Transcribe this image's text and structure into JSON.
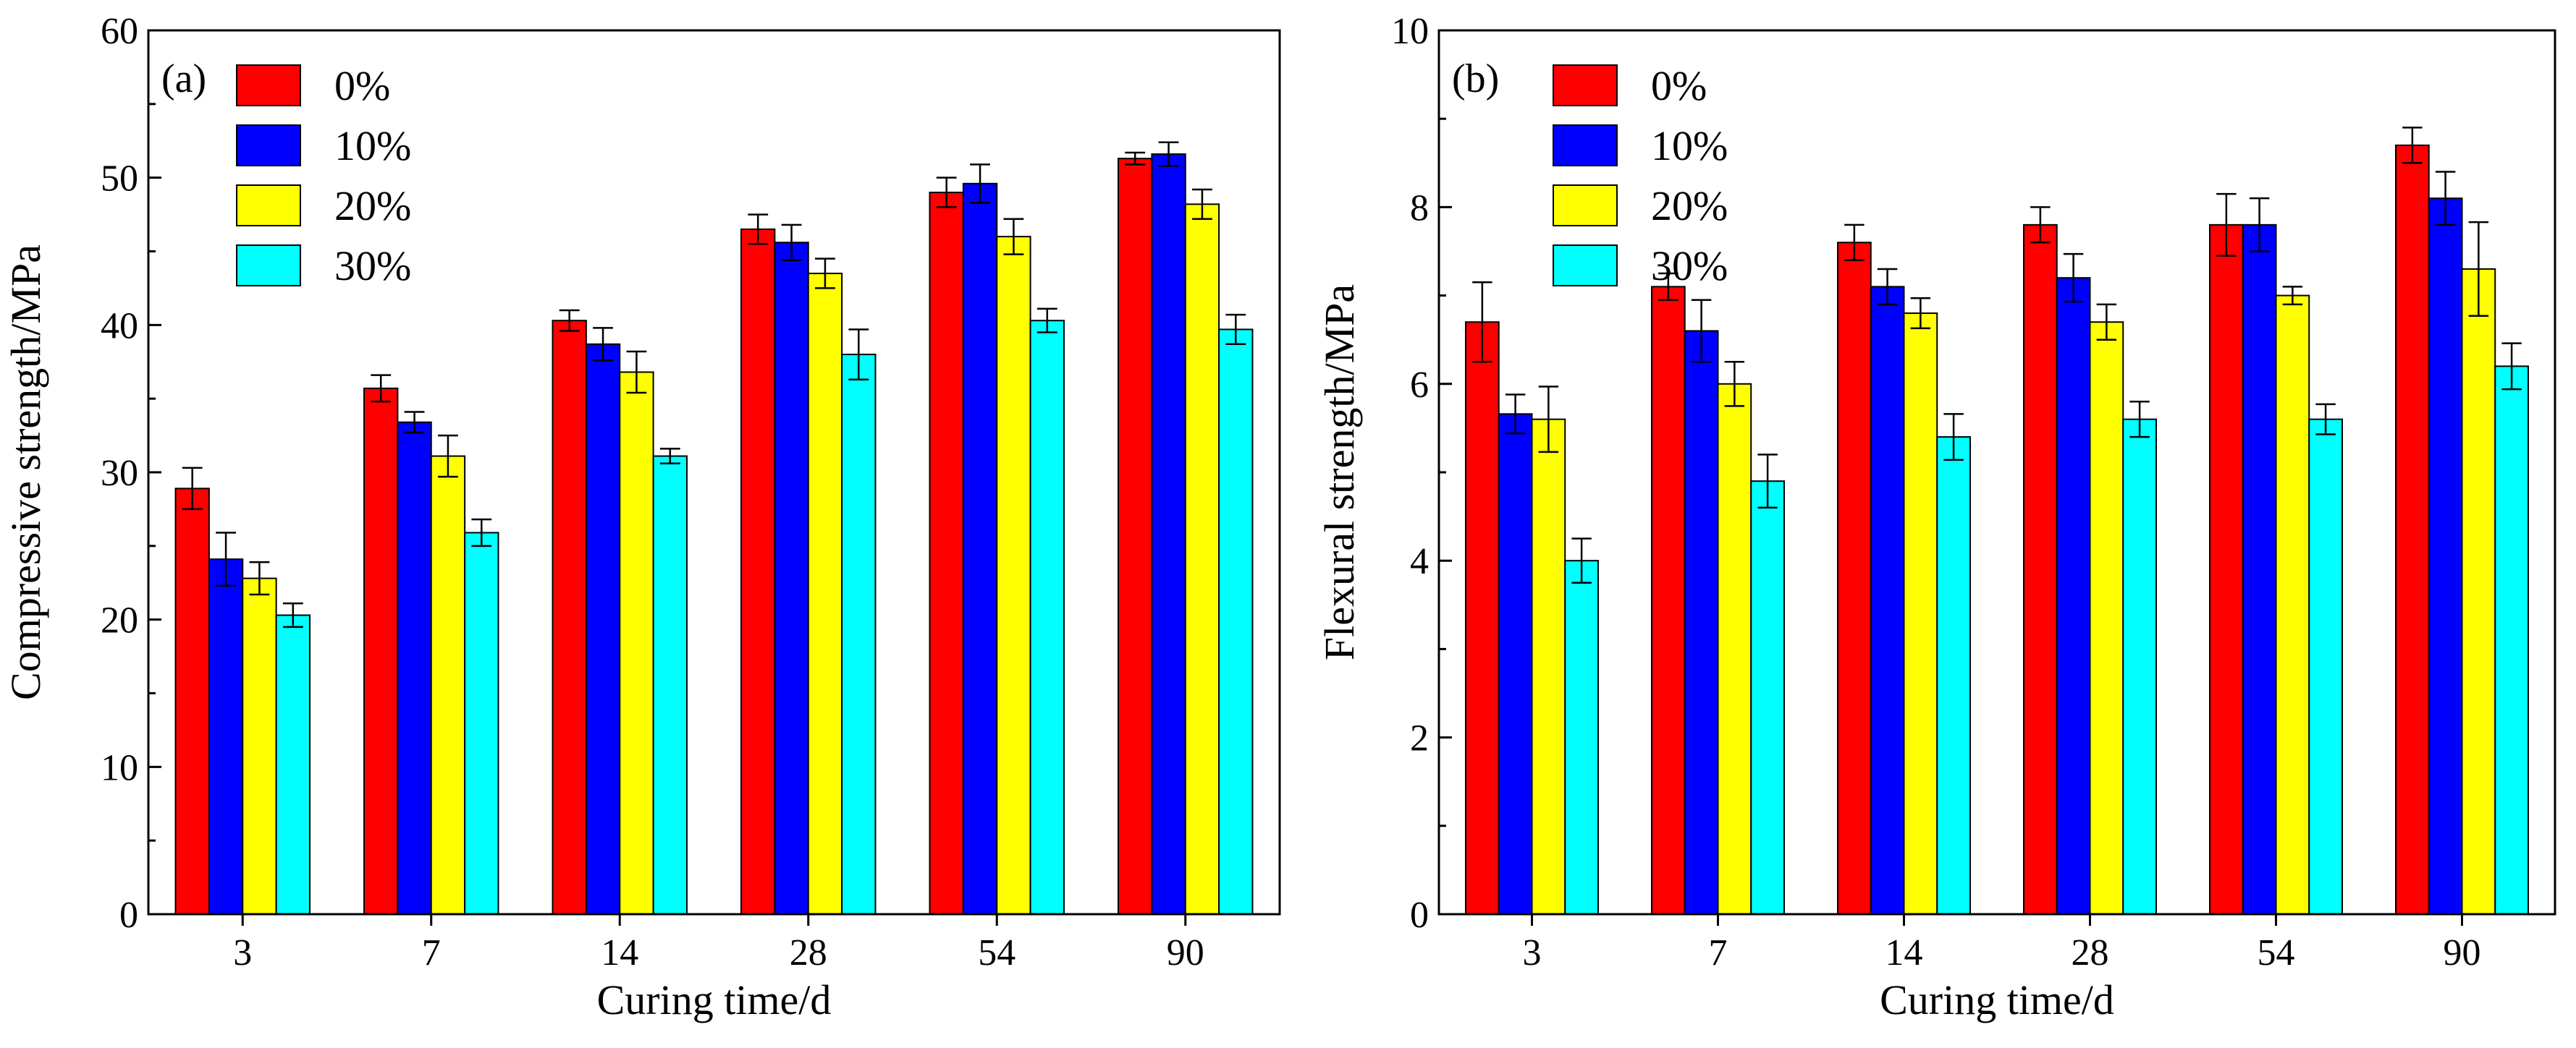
{
  "chart_data": [
    {
      "type": "bar",
      "panel_label": "(a)",
      "xlabel": "Curing time/d",
      "ylabel": "Compressive strength/MPa",
      "categories": [
        "3",
        "7",
        "14",
        "28",
        "54",
        "90"
      ],
      "ylim": [
        0,
        60
      ],
      "yticks": [
        "0",
        "10",
        "20",
        "30",
        "40",
        "50",
        "60"
      ],
      "legend_position": "top-left",
      "grid": false,
      "series": [
        {
          "name": "0%",
          "color": "#ff0000",
          "values": [
            28.9,
            35.7,
            40.3,
            46.5,
            49.0,
            51.3
          ],
          "errors": [
            1.4,
            0.9,
            0.7,
            1.0,
            1.0,
            0.4
          ]
        },
        {
          "name": "10%",
          "color": "#0000ff",
          "values": [
            24.1,
            33.4,
            38.7,
            45.6,
            49.6,
            51.6
          ],
          "errors": [
            1.8,
            0.7,
            1.1,
            1.2,
            1.3,
            0.8
          ]
        },
        {
          "name": "20%",
          "color": "#ffff00",
          "values": [
            22.8,
            31.1,
            36.8,
            43.5,
            46.0,
            48.2
          ],
          "errors": [
            1.1,
            1.4,
            1.4,
            1.0,
            1.2,
            1.0
          ]
        },
        {
          "name": "30%",
          "color": "#00ffff",
          "values": [
            20.3,
            25.9,
            31.1,
            38.0,
            40.3,
            39.7
          ],
          "errors": [
            0.8,
            0.9,
            0.5,
            1.7,
            0.8,
            1.0
          ]
        }
      ]
    },
    {
      "type": "bar",
      "panel_label": "(b)",
      "xlabel": "Curing time/d",
      "ylabel": "Flexural strength/MPa",
      "categories": [
        "3",
        "7",
        "14",
        "28",
        "54",
        "90"
      ],
      "ylim": [
        0,
        10
      ],
      "yticks": [
        "0",
        "2",
        "4",
        "6",
        "8",
        "10"
      ],
      "legend_position": "top-left",
      "grid": false,
      "series": [
        {
          "name": "0%",
          "color": "#ff0000",
          "values": [
            6.7,
            7.1,
            7.6,
            7.8,
            7.8,
            8.7
          ],
          "errors": [
            0.45,
            0.15,
            0.2,
            0.2,
            0.35,
            0.2
          ]
        },
        {
          "name": "10%",
          "color": "#0000ff",
          "values": [
            5.66,
            6.6,
            7.1,
            7.2,
            7.8,
            8.1
          ],
          "errors": [
            0.22,
            0.35,
            0.2,
            0.27,
            0.3,
            0.3
          ]
        },
        {
          "name": "20%",
          "color": "#ffff00",
          "values": [
            5.6,
            6.0,
            6.8,
            6.7,
            7.0,
            7.3
          ],
          "errors": [
            0.37,
            0.25,
            0.17,
            0.2,
            0.1,
            0.53
          ]
        },
        {
          "name": "30%",
          "color": "#00ffff",
          "values": [
            4.0,
            4.9,
            5.4,
            5.6,
            5.6,
            6.2
          ],
          "errors": [
            0.25,
            0.3,
            0.26,
            0.2,
            0.17,
            0.26
          ]
        }
      ]
    }
  ]
}
